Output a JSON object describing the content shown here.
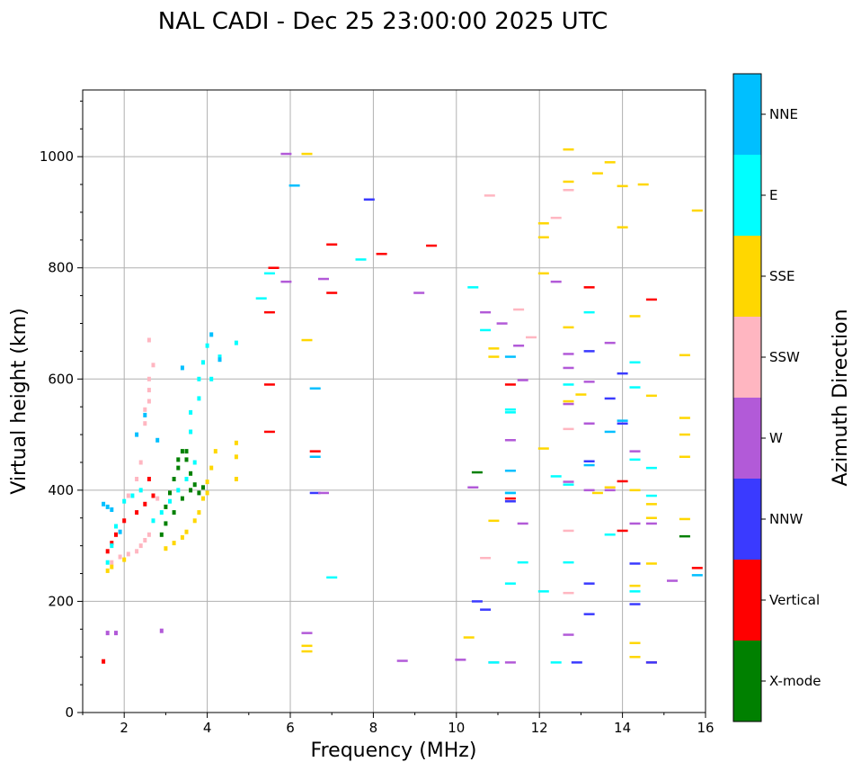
{
  "chart_data": {
    "type": "scatter",
    "title": "NAL CADI - Dec 25 23:00:00 2025 UTC",
    "xlabel": "Frequency (MHz)",
    "ylabel": "Virtual height (km)",
    "xlim": [
      1,
      16
    ],
    "ylim": [
      0,
      1120
    ],
    "xticks": [
      2,
      4,
      6,
      8,
      10,
      12,
      14,
      16
    ],
    "yticks": [
      0,
      200,
      400,
      600,
      800,
      1000
    ],
    "grid": true,
    "colorbar": {
      "label": "Azimuth Direction",
      "categories": [
        {
          "name": "X-mode",
          "color": "#008000"
        },
        {
          "name": "Vertical",
          "color": "#ff0000"
        },
        {
          "name": "NNW",
          "color": "#3a3aff"
        },
        {
          "name": "W",
          "color": "#b25ad8"
        },
        {
          "name": "SSW",
          "color": "#ffb6c1"
        },
        {
          "name": "SSE",
          "color": "#ffd700"
        },
        {
          "name": "E",
          "color": "#00ffff"
        },
        {
          "name": "NNE",
          "color": "#00bfff"
        }
      ]
    },
    "series": [
      {
        "name": "X-mode",
        "points": [
          [
            3.0,
            370
          ],
          [
            3.1,
            395
          ],
          [
            3.2,
            420
          ],
          [
            3.3,
            440
          ],
          [
            3.4,
            470
          ],
          [
            3.5,
            455
          ],
          [
            3.6,
            430
          ],
          [
            3.7,
            410
          ],
          [
            3.8,
            395
          ],
          [
            3.0,
            340
          ],
          [
            2.9,
            320
          ],
          [
            3.2,
            360
          ],
          [
            3.4,
            385
          ],
          [
            3.6,
            400
          ],
          [
            3.9,
            405
          ],
          [
            3.3,
            455
          ],
          [
            3.5,
            470
          ],
          [
            10.5,
            432
          ],
          [
            15.5,
            317
          ]
        ]
      },
      {
        "name": "Vertical",
        "points": [
          [
            1.5,
            92
          ],
          [
            1.6,
            290
          ],
          [
            1.7,
            305
          ],
          [
            1.8,
            320
          ],
          [
            2.0,
            345
          ],
          [
            2.3,
            360
          ],
          [
            2.5,
            375
          ],
          [
            2.6,
            420
          ],
          [
            2.7,
            390
          ],
          [
            5.5,
            505
          ],
          [
            5.5,
            590
          ],
          [
            5.5,
            720
          ],
          [
            5.6,
            800
          ],
          [
            6.6,
            470
          ],
          [
            7.0,
            755
          ],
          [
            7.0,
            842
          ],
          [
            8.2,
            825
          ],
          [
            9.4,
            840
          ],
          [
            11.3,
            590
          ],
          [
            11.3,
            385
          ],
          [
            13.2,
            765
          ],
          [
            14.0,
            327
          ],
          [
            14.0,
            416
          ],
          [
            14.7,
            90
          ],
          [
            14.7,
            743
          ],
          [
            15.8,
            260
          ]
        ]
      },
      {
        "name": "NNW",
        "points": [
          [
            6.6,
            395
          ],
          [
            7.9,
            923
          ],
          [
            10.5,
            200
          ],
          [
            10.7,
            185
          ],
          [
            11.3,
            380
          ],
          [
            12.9,
            90
          ],
          [
            13.2,
            177
          ],
          [
            13.2,
            232
          ],
          [
            13.2,
            452
          ],
          [
            13.2,
            650
          ],
          [
            13.7,
            565
          ],
          [
            14.0,
            610
          ],
          [
            14.0,
            520
          ],
          [
            14.3,
            195
          ],
          [
            14.3,
            268
          ],
          [
            14.7,
            90
          ]
        ]
      },
      {
        "name": "W",
        "points": [
          [
            1.6,
            143
          ],
          [
            1.8,
            143
          ],
          [
            2.9,
            147
          ],
          [
            5.9,
            1005
          ],
          [
            5.9,
            775
          ],
          [
            6.4,
            143
          ],
          [
            6.8,
            780
          ],
          [
            6.8,
            395
          ],
          [
            8.7,
            93
          ],
          [
            9.1,
            755
          ],
          [
            10.1,
            95
          ],
          [
            10.4,
            405
          ],
          [
            10.7,
            720
          ],
          [
            10.9,
            90
          ],
          [
            11.1,
            700
          ],
          [
            11.3,
            90
          ],
          [
            11.3,
            490
          ],
          [
            11.5,
            660
          ],
          [
            11.6,
            340
          ],
          [
            11.6,
            598
          ],
          [
            12.4,
            775
          ],
          [
            12.7,
            140
          ],
          [
            12.7,
            645
          ],
          [
            12.7,
            620
          ],
          [
            12.7,
            555
          ],
          [
            12.7,
            415
          ],
          [
            13.2,
            400
          ],
          [
            13.2,
            520
          ],
          [
            13.2,
            595
          ],
          [
            13.7,
            665
          ],
          [
            13.7,
            400
          ],
          [
            14.3,
            340
          ],
          [
            14.3,
            470
          ],
          [
            14.7,
            340
          ],
          [
            15.2,
            237
          ]
        ]
      },
      {
        "name": "SSW",
        "points": [
          [
            1.7,
            270
          ],
          [
            1.9,
            280
          ],
          [
            2.1,
            285
          ],
          [
            2.3,
            290
          ],
          [
            2.4,
            300
          ],
          [
            2.5,
            310
          ],
          [
            2.6,
            320
          ],
          [
            2.1,
            390
          ],
          [
            2.3,
            420
          ],
          [
            2.4,
            450
          ],
          [
            2.5,
            520
          ],
          [
            2.5,
            545
          ],
          [
            2.6,
            560
          ],
          [
            2.6,
            580
          ],
          [
            2.6,
            600
          ],
          [
            2.7,
            625
          ],
          [
            2.6,
            670
          ],
          [
            2.8,
            385
          ],
          [
            10.7,
            278
          ],
          [
            10.8,
            930
          ],
          [
            11.5,
            725
          ],
          [
            11.8,
            675
          ],
          [
            12.4,
            890
          ],
          [
            12.7,
            510
          ],
          [
            12.7,
            940
          ],
          [
            12.7,
            327
          ],
          [
            12.7,
            215
          ]
        ]
      },
      {
        "name": "SSE",
        "points": [
          [
            1.6,
            255
          ],
          [
            1.7,
            262
          ],
          [
            2.0,
            275
          ],
          [
            3.0,
            295
          ],
          [
            3.2,
            305
          ],
          [
            3.4,
            315
          ],
          [
            3.5,
            325
          ],
          [
            3.7,
            345
          ],
          [
            3.8,
            360
          ],
          [
            3.9,
            385
          ],
          [
            4.0,
            415
          ],
          [
            4.1,
            440
          ],
          [
            4.2,
            470
          ],
          [
            4.0,
            395
          ],
          [
            4.7,
            485
          ],
          [
            4.7,
            460
          ],
          [
            4.7,
            420
          ],
          [
            6.4,
            1005
          ],
          [
            6.4,
            670
          ],
          [
            6.4,
            120
          ],
          [
            6.4,
            110
          ],
          [
            10.3,
            135
          ],
          [
            10.9,
            345
          ],
          [
            10.9,
            655
          ],
          [
            10.9,
            640
          ],
          [
            12.1,
            475
          ],
          [
            12.1,
            790
          ],
          [
            12.1,
            855
          ],
          [
            12.1,
            880
          ],
          [
            12.7,
            1013
          ],
          [
            12.7,
            955
          ],
          [
            12.7,
            693
          ],
          [
            12.7,
            560
          ],
          [
            13.0,
            572
          ],
          [
            13.4,
            395
          ],
          [
            13.4,
            970
          ],
          [
            13.7,
            990
          ],
          [
            13.7,
            405
          ],
          [
            14.0,
            947
          ],
          [
            14.0,
            873
          ],
          [
            14.3,
            713
          ],
          [
            14.3,
            400
          ],
          [
            14.3,
            228
          ],
          [
            14.3,
            125
          ],
          [
            14.3,
            100
          ],
          [
            14.5,
            950
          ],
          [
            14.7,
            570
          ],
          [
            14.7,
            375
          ],
          [
            14.7,
            350
          ],
          [
            14.7,
            268
          ],
          [
            15.5,
            643
          ],
          [
            15.5,
            530
          ],
          [
            15.5,
            500
          ],
          [
            15.5,
            460
          ],
          [
            15.5,
            348
          ],
          [
            15.8,
            903
          ]
        ]
      },
      {
        "name": "E",
        "points": [
          [
            1.6,
            270
          ],
          [
            1.7,
            300
          ],
          [
            1.8,
            335
          ],
          [
            2.0,
            380
          ],
          [
            2.2,
            390
          ],
          [
            2.4,
            400
          ],
          [
            2.7,
            345
          ],
          [
            2.9,
            360
          ],
          [
            3.1,
            380
          ],
          [
            3.3,
            400
          ],
          [
            3.5,
            420
          ],
          [
            3.7,
            450
          ],
          [
            3.6,
            505
          ],
          [
            3.6,
            540
          ],
          [
            3.8,
            565
          ],
          [
            3.8,
            600
          ],
          [
            3.9,
            630
          ],
          [
            4.0,
            660
          ],
          [
            4.1,
            600
          ],
          [
            4.3,
            640
          ],
          [
            4.7,
            665
          ],
          [
            5.3,
            745
          ],
          [
            5.5,
            790
          ],
          [
            7.0,
            243
          ],
          [
            7.7,
            815
          ],
          [
            10.4,
            765
          ],
          [
            10.7,
            688
          ],
          [
            10.9,
            90
          ],
          [
            11.3,
            540
          ],
          [
            11.3,
            545
          ],
          [
            11.3,
            395
          ],
          [
            11.3,
            232
          ],
          [
            11.6,
            270
          ],
          [
            12.1,
            218
          ],
          [
            12.4,
            425
          ],
          [
            12.4,
            90
          ],
          [
            12.7,
            590
          ],
          [
            12.7,
            410
          ],
          [
            12.7,
            270
          ],
          [
            13.2,
            720
          ],
          [
            13.7,
            320
          ],
          [
            14.3,
            630
          ],
          [
            14.3,
            585
          ],
          [
            14.3,
            455
          ],
          [
            14.7,
            440
          ],
          [
            14.7,
            390
          ],
          [
            14.3,
            218
          ]
        ]
      },
      {
        "name": "NNE",
        "points": [
          [
            1.5,
            375
          ],
          [
            1.6,
            370
          ],
          [
            1.7,
            365
          ],
          [
            1.9,
            325
          ],
          [
            2.3,
            500
          ],
          [
            2.5,
            535
          ],
          [
            2.8,
            490
          ],
          [
            3.4,
            620
          ],
          [
            4.1,
            680
          ],
          [
            4.3,
            635
          ],
          [
            6.1,
            948
          ],
          [
            6.6,
            583
          ],
          [
            6.6,
            460
          ],
          [
            11.3,
            640
          ],
          [
            11.3,
            435
          ],
          [
            11.3,
            395
          ],
          [
            13.2,
            445
          ],
          [
            13.7,
            505
          ],
          [
            14.0,
            525
          ],
          [
            15.8,
            247
          ]
        ]
      }
    ]
  }
}
